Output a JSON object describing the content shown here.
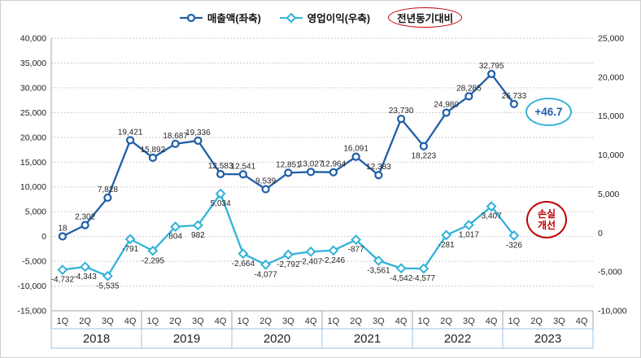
{
  "legend": {
    "items": [
      {
        "label": "매출액(좌축)"
      },
      {
        "label": "영업이익(우축)"
      },
      {
        "label": "전년동기대비"
      }
    ]
  },
  "annotations": {
    "yoy_value": "+46.7",
    "loss_improvement_line1": "손실",
    "loss_improvement_line2": "개선"
  },
  "colors": {
    "revenue": "#1F5FA8",
    "profit": "#33B2D9",
    "badge_red": "#C00000",
    "grid": "#CDCDCD",
    "axis": "#A6A6A6",
    "year_box_border": "#9DC3E6"
  },
  "chart_data": {
    "type": "line",
    "title": "",
    "categories": [
      "1Q",
      "2Q",
      "3Q",
      "4Q",
      "1Q",
      "2Q",
      "3Q",
      "4Q",
      "1Q",
      "2Q",
      "3Q",
      "4Q",
      "1Q",
      "2Q",
      "3Q",
      "4Q",
      "1Q",
      "2Q",
      "3Q",
      "4Q",
      "1Q",
      "2Q",
      "3Q",
      "4Q"
    ],
    "years": [
      "2018",
      "2019",
      "2020",
      "2021",
      "2022",
      "2023"
    ],
    "left_axis": {
      "min": -15000,
      "max": 40000,
      "step": 5000
    },
    "right_axis": {
      "min": -10000,
      "max": 25000,
      "step": 5000
    },
    "grid": true,
    "legend_position": "top",
    "series": [
      {
        "name": "매출액(좌축)",
        "axis": "left",
        "color": "#1F5FA8",
        "marker": "circle",
        "label_side": "above",
        "label_overrides": {
          "16": "below"
        },
        "values": [
          18,
          2302,
          7828,
          19421,
          15892,
          18687,
          19336,
          12583,
          12541,
          9539,
          12851,
          13027,
          12964,
          16091,
          12383,
          23730,
          18223,
          24980,
          28285,
          32795,
          26733,
          null,
          null,
          null
        ],
        "labels": [
          "18",
          "2,302",
          "7,828",
          "19,421",
          "15,892",
          "18,687",
          "19,336",
          "12,583",
          "12,541",
          "9,539",
          "12,851",
          "13,027",
          "12,964",
          "16,091",
          "12,383",
          "23,730",
          "18,223",
          "24,980",
          "28,285",
          "32,795",
          "26,733"
        ]
      },
      {
        "name": "영업이익(우축)",
        "axis": "right",
        "color": "#33B2D9",
        "marker": "diamond",
        "label_side": "below",
        "values": [
          -4732,
          -4343,
          -5535,
          -791,
          -2295,
          804,
          982,
          5034,
          -2664,
          -4077,
          -2792,
          -2407,
          -2246,
          -877,
          -3561,
          -4542,
          -4577,
          -281,
          1017,
          3407,
          -326,
          null,
          null,
          null
        ],
        "labels": [
          "-4,732",
          "-4,343",
          "-5,535",
          "-791",
          "-2,295",
          "804",
          "982",
          "5,034",
          "-2,664",
          "-4,077",
          "-2,792",
          "-2,407",
          "-2,246",
          "-877",
          "-3,561",
          "-4,542",
          "-4,577",
          "-281",
          "1,017",
          "3,407",
          "-326"
        ]
      }
    ]
  }
}
